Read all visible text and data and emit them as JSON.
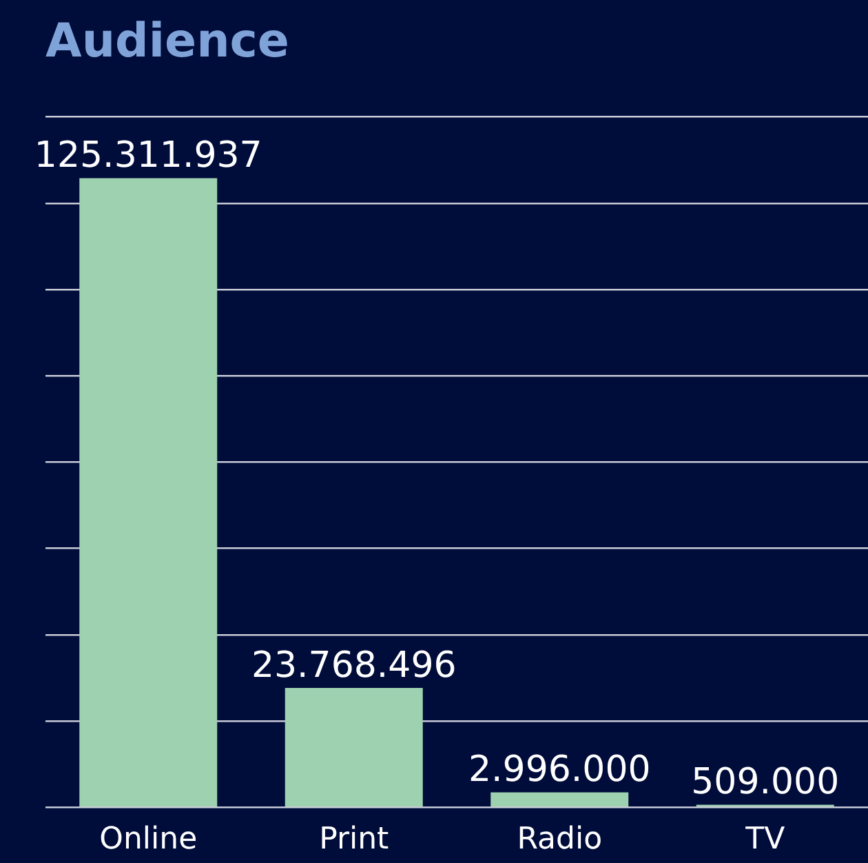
{
  "chart_data": {
    "type": "bar",
    "title": "Audience",
    "categories": [
      "Online",
      "Print",
      "Radio",
      "TV"
    ],
    "values": [
      125311937,
      23768496,
      2996000,
      509000
    ],
    "value_labels": [
      "125.311.937",
      "23.768.496",
      "2.996.000",
      "509.000"
    ],
    "color": "#9dd1af",
    "ylim": [
      0,
      137500000
    ],
    "yticks": [
      {
        "value": 0,
        "label": null
      },
      {
        "value": 17187500,
        "label": null
      },
      {
        "value": 34375000,
        "label": null
      },
      {
        "value": 51562500,
        "label": null
      },
      {
        "value": 68750000,
        "label": null
      },
      {
        "value": 85937500,
        "label": null
      },
      {
        "value": 103125000,
        "label": null
      },
      {
        "value": 120312500,
        "label": null
      },
      {
        "value": 137500000,
        "label": null
      }
    ],
    "grid": "y",
    "tick_labels": "x",
    "legend": false
  }
}
